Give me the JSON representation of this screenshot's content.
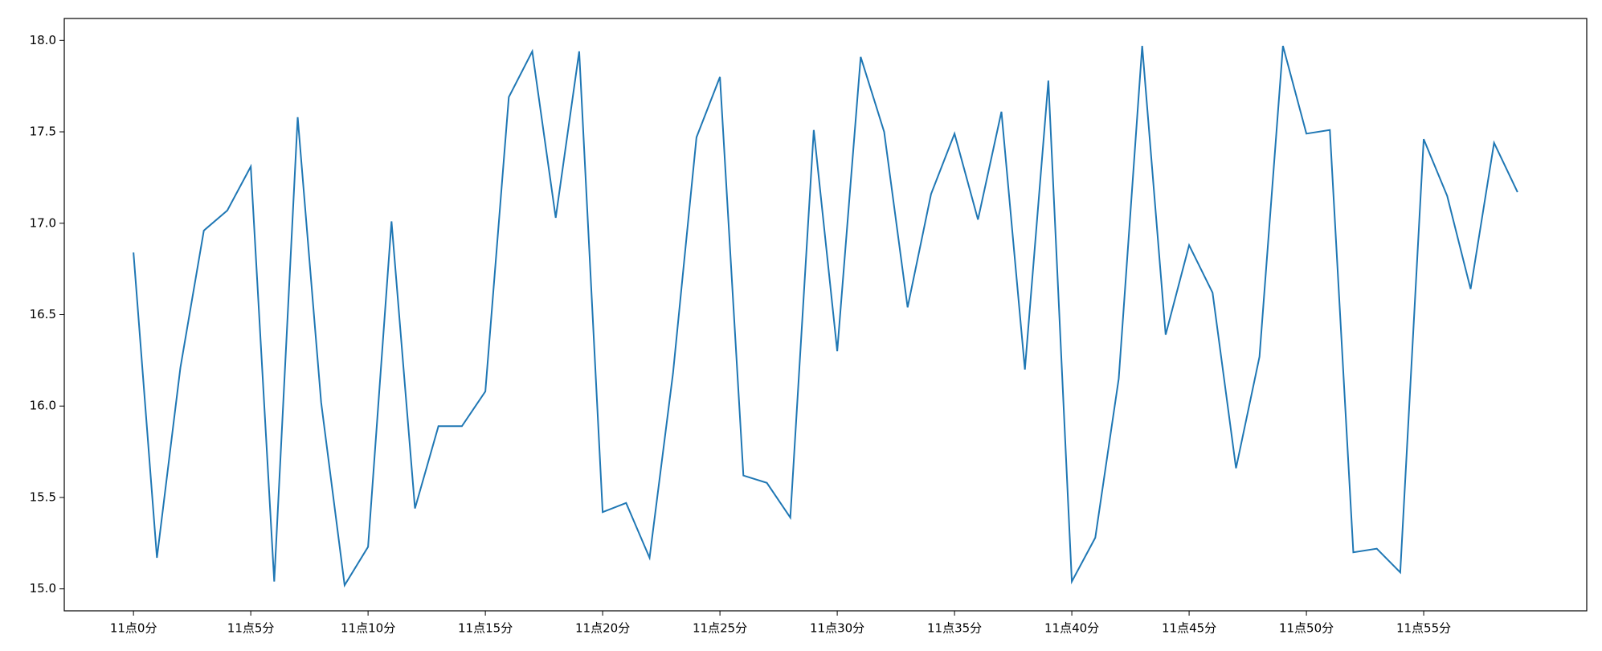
{
  "chart_data": {
    "type": "line",
    "categories": [
      "11点0分",
      null,
      null,
      null,
      null,
      "11点5分",
      null,
      null,
      null,
      null,
      "11点10分",
      null,
      null,
      null,
      null,
      "11点15分",
      null,
      null,
      null,
      null,
      "11点20分",
      null,
      null,
      null,
      null,
      "11点25分",
      null,
      null,
      null,
      null,
      "11点30分",
      null,
      null,
      null,
      null,
      "11点35分",
      null,
      null,
      null,
      null,
      "11点40分",
      null,
      null,
      null,
      null,
      "11点45分",
      null,
      null,
      null,
      null,
      "11点50分",
      null,
      null,
      null,
      null,
      "11点55分",
      null,
      null,
      null,
      null
    ],
    "values": [
      16.84,
      15.17,
      16.21,
      16.96,
      17.07,
      17.31,
      15.04,
      17.58,
      16.02,
      15.02,
      15.23,
      17.01,
      15.44,
      15.89,
      15.89,
      16.08,
      17.69,
      17.94,
      17.03,
      17.94,
      15.42,
      15.47,
      15.17,
      16.18,
      17.47,
      17.8,
      15.62,
      15.58,
      15.39,
      17.51,
      16.3,
      17.91,
      17.5,
      16.54,
      17.16,
      17.49,
      17.02,
      17.61,
      16.2,
      17.78,
      15.04,
      15.28,
      16.15,
      17.97,
      16.39,
      16.88,
      16.62,
      15.66,
      16.27,
      17.97,
      17.49,
      17.51,
      15.2,
      15.22,
      15.09,
      17.46,
      17.15,
      16.64,
      17.44,
      17.17
    ],
    "color": "#1f77b4",
    "ylim": [
      14.88,
      18.12
    ],
    "yticks": [
      {
        "value": 15,
        "label": "15.0"
      },
      15.5,
      {
        "value": 16,
        "label": "16.0"
      },
      16.5,
      {
        "value": 17,
        "label": "17.0"
      },
      17.5,
      {
        "value": 18,
        "label": "18.0"
      }
    ],
    "grid": false
  }
}
